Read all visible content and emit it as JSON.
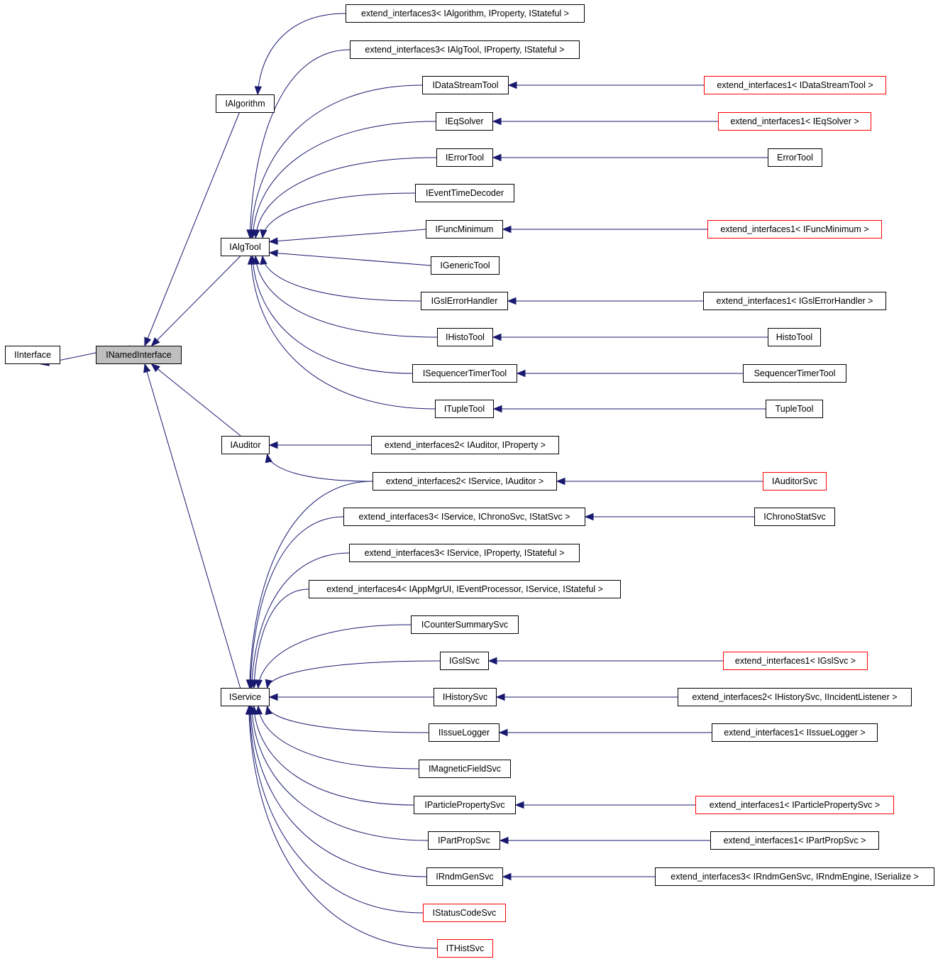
{
  "colors": {
    "edge": "#191970",
    "focus_fill": "#bfbfbf",
    "normal_border": "#000000",
    "undocumented_border": "#ff0000"
  },
  "nodes": [
    {
      "id": "IInterface",
      "label": "IInterface"
    },
    {
      "id": "INamedInterface",
      "label": "INamedInterface",
      "focus": true
    },
    {
      "id": "IAlgorithm",
      "label": "IAlgorithm"
    },
    {
      "id": "IAlgTool",
      "label": "IAlgTool"
    },
    {
      "id": "IAuditor",
      "label": "IAuditor"
    },
    {
      "id": "IService",
      "label": "IService"
    },
    {
      "id": "ext3Alg",
      "label": "extend_interfaces3< IAlgorithm, IProperty, IStateful >"
    },
    {
      "id": "ext3AlgTool",
      "label": "extend_interfaces3< IAlgTool, IProperty, IStateful >"
    },
    {
      "id": "IDataStreamTool",
      "label": "IDataStreamTool"
    },
    {
      "id": "IEqSolver",
      "label": "IEqSolver"
    },
    {
      "id": "IErrorTool",
      "label": "IErrorTool"
    },
    {
      "id": "IEventTimeDecoder",
      "label": "IEventTimeDecoder"
    },
    {
      "id": "IFuncMinimum",
      "label": "IFuncMinimum"
    },
    {
      "id": "IGenericTool",
      "label": "IGenericTool"
    },
    {
      "id": "IGslErrorHandler",
      "label": "IGslErrorHandler"
    },
    {
      "id": "IHistoTool",
      "label": "IHistoTool"
    },
    {
      "id": "ISequencerTimerTool",
      "label": "ISequencerTimerTool"
    },
    {
      "id": "ITupleTool",
      "label": "ITupleTool"
    },
    {
      "id": "ext2AudProp",
      "label": "extend_interfaces2< IAuditor, IProperty >"
    },
    {
      "id": "ext2SvcAud",
      "label": "extend_interfaces2< IService, IAuditor >"
    },
    {
      "id": "ext3Chrono",
      "label": "extend_interfaces3< IService, IChronoSvc, IStatSvc >"
    },
    {
      "id": "ext3SvcProp",
      "label": "extend_interfaces3< IService, IProperty, IStateful >"
    },
    {
      "id": "ext4",
      "label": "extend_interfaces4< IAppMgrUI, IEventProcessor, IService, IStateful >"
    },
    {
      "id": "ICounterSummarySvc",
      "label": "ICounterSummarySvc"
    },
    {
      "id": "IGslSvc",
      "label": "IGslSvc"
    },
    {
      "id": "IHistorySvc",
      "label": "IHistorySvc"
    },
    {
      "id": "IIssueLogger",
      "label": "IIssueLogger"
    },
    {
      "id": "IMagneticFieldSvc",
      "label": "IMagneticFieldSvc"
    },
    {
      "id": "IParticlePropertySvc",
      "label": "IParticlePropertySvc"
    },
    {
      "id": "IPartPropSvc",
      "label": "IPartPropSvc"
    },
    {
      "id": "IRndmGenSvc",
      "label": "IRndmGenSvc"
    },
    {
      "id": "IStatusCodeSvc",
      "label": "IStatusCodeSvc",
      "undocumented": true
    },
    {
      "id": "ITHistSvc",
      "label": "ITHistSvc",
      "undocumented": true
    },
    {
      "id": "ext1DataStream",
      "label": "extend_interfaces1< IDataStreamTool >",
      "undocumented": true
    },
    {
      "id": "ext1EqSolver",
      "label": "extend_interfaces1< IEqSolver >",
      "undocumented": true
    },
    {
      "id": "ErrorTool",
      "label": "ErrorTool"
    },
    {
      "id": "ext1FuncMin",
      "label": "extend_interfaces1< IFuncMinimum >",
      "undocumented": true
    },
    {
      "id": "ext1GslErr",
      "label": "extend_interfaces1< IGslErrorHandler >"
    },
    {
      "id": "HistoTool",
      "label": "HistoTool"
    },
    {
      "id": "SequencerTimerTool",
      "label": "SequencerTimerTool"
    },
    {
      "id": "TupleTool",
      "label": "TupleTool"
    },
    {
      "id": "IAuditorSvc",
      "label": "IAuditorSvc",
      "undocumented": true
    },
    {
      "id": "IChronoStatSvc",
      "label": "IChronoStatSvc"
    },
    {
      "id": "ext1GslSvc",
      "label": "extend_interfaces1< IGslSvc >",
      "undocumented": true
    },
    {
      "id": "ext2History",
      "label": "extend_interfaces2< IHistorySvc, IIncidentListener >"
    },
    {
      "id": "ext1Issue",
      "label": "extend_interfaces1< IIssueLogger >"
    },
    {
      "id": "ext1PartProp",
      "label": "extend_interfaces1< IParticlePropertySvc >",
      "undocumented": true
    },
    {
      "id": "ext1PPSvc",
      "label": "extend_interfaces1< IPartPropSvc >"
    },
    {
      "id": "ext3Rndm",
      "label": "extend_interfaces3< IRndmGenSvc, IRndmEngine, ISerialize >"
    }
  ],
  "edges": [
    [
      "INamedInterface",
      "IInterface"
    ],
    [
      "IAlgorithm",
      "INamedInterface"
    ],
    [
      "IAlgTool",
      "INamedInterface"
    ],
    [
      "IAuditor",
      "INamedInterface"
    ],
    [
      "IService",
      "INamedInterface"
    ],
    [
      "ext3Alg",
      "IAlgorithm"
    ],
    [
      "ext3AlgTool",
      "IAlgTool"
    ],
    [
      "IDataStreamTool",
      "IAlgTool"
    ],
    [
      "IEqSolver",
      "IAlgTool"
    ],
    [
      "IErrorTool",
      "IAlgTool"
    ],
    [
      "IEventTimeDecoder",
      "IAlgTool"
    ],
    [
      "IFuncMinimum",
      "IAlgTool"
    ],
    [
      "IGenericTool",
      "IAlgTool"
    ],
    [
      "IGslErrorHandler",
      "IAlgTool"
    ],
    [
      "IHistoTool",
      "IAlgTool"
    ],
    [
      "ISequencerTimerTool",
      "IAlgTool"
    ],
    [
      "ITupleTool",
      "IAlgTool"
    ],
    [
      "ext2AudProp",
      "IAuditor"
    ],
    [
      "ext2SvcAud",
      "IAuditor"
    ],
    [
      "ext2SvcAud",
      "IService"
    ],
    [
      "ext3Chrono",
      "IService"
    ],
    [
      "ext3SvcProp",
      "IService"
    ],
    [
      "ext4",
      "IService"
    ],
    [
      "ICounterSummarySvc",
      "IService"
    ],
    [
      "IGslSvc",
      "IService"
    ],
    [
      "IHistorySvc",
      "IService"
    ],
    [
      "IIssueLogger",
      "IService"
    ],
    [
      "IMagneticFieldSvc",
      "IService"
    ],
    [
      "IParticlePropertySvc",
      "IService"
    ],
    [
      "IPartPropSvc",
      "IService"
    ],
    [
      "IRndmGenSvc",
      "IService"
    ],
    [
      "IStatusCodeSvc",
      "IService"
    ],
    [
      "ITHistSvc",
      "IService"
    ],
    [
      "ext1DataStream",
      "IDataStreamTool"
    ],
    [
      "ext1EqSolver",
      "IEqSolver"
    ],
    [
      "ErrorTool",
      "IErrorTool"
    ],
    [
      "ext1FuncMin",
      "IFuncMinimum"
    ],
    [
      "ext1GslErr",
      "IGslErrorHandler"
    ],
    [
      "HistoTool",
      "IHistoTool"
    ],
    [
      "SequencerTimerTool",
      "ISequencerTimerTool"
    ],
    [
      "TupleTool",
      "ITupleTool"
    ],
    [
      "IAuditorSvc",
      "ext2SvcAud"
    ],
    [
      "IChronoStatSvc",
      "ext3Chrono"
    ],
    [
      "ext1GslSvc",
      "IGslSvc"
    ],
    [
      "ext2History",
      "IHistorySvc"
    ],
    [
      "ext1Issue",
      "IIssueLogger"
    ],
    [
      "ext1PartProp",
      "IParticlePropertySvc"
    ],
    [
      "ext1PPSvc",
      "IPartPropSvc"
    ],
    [
      "ext3Rndm",
      "IRndmGenSvc"
    ]
  ]
}
